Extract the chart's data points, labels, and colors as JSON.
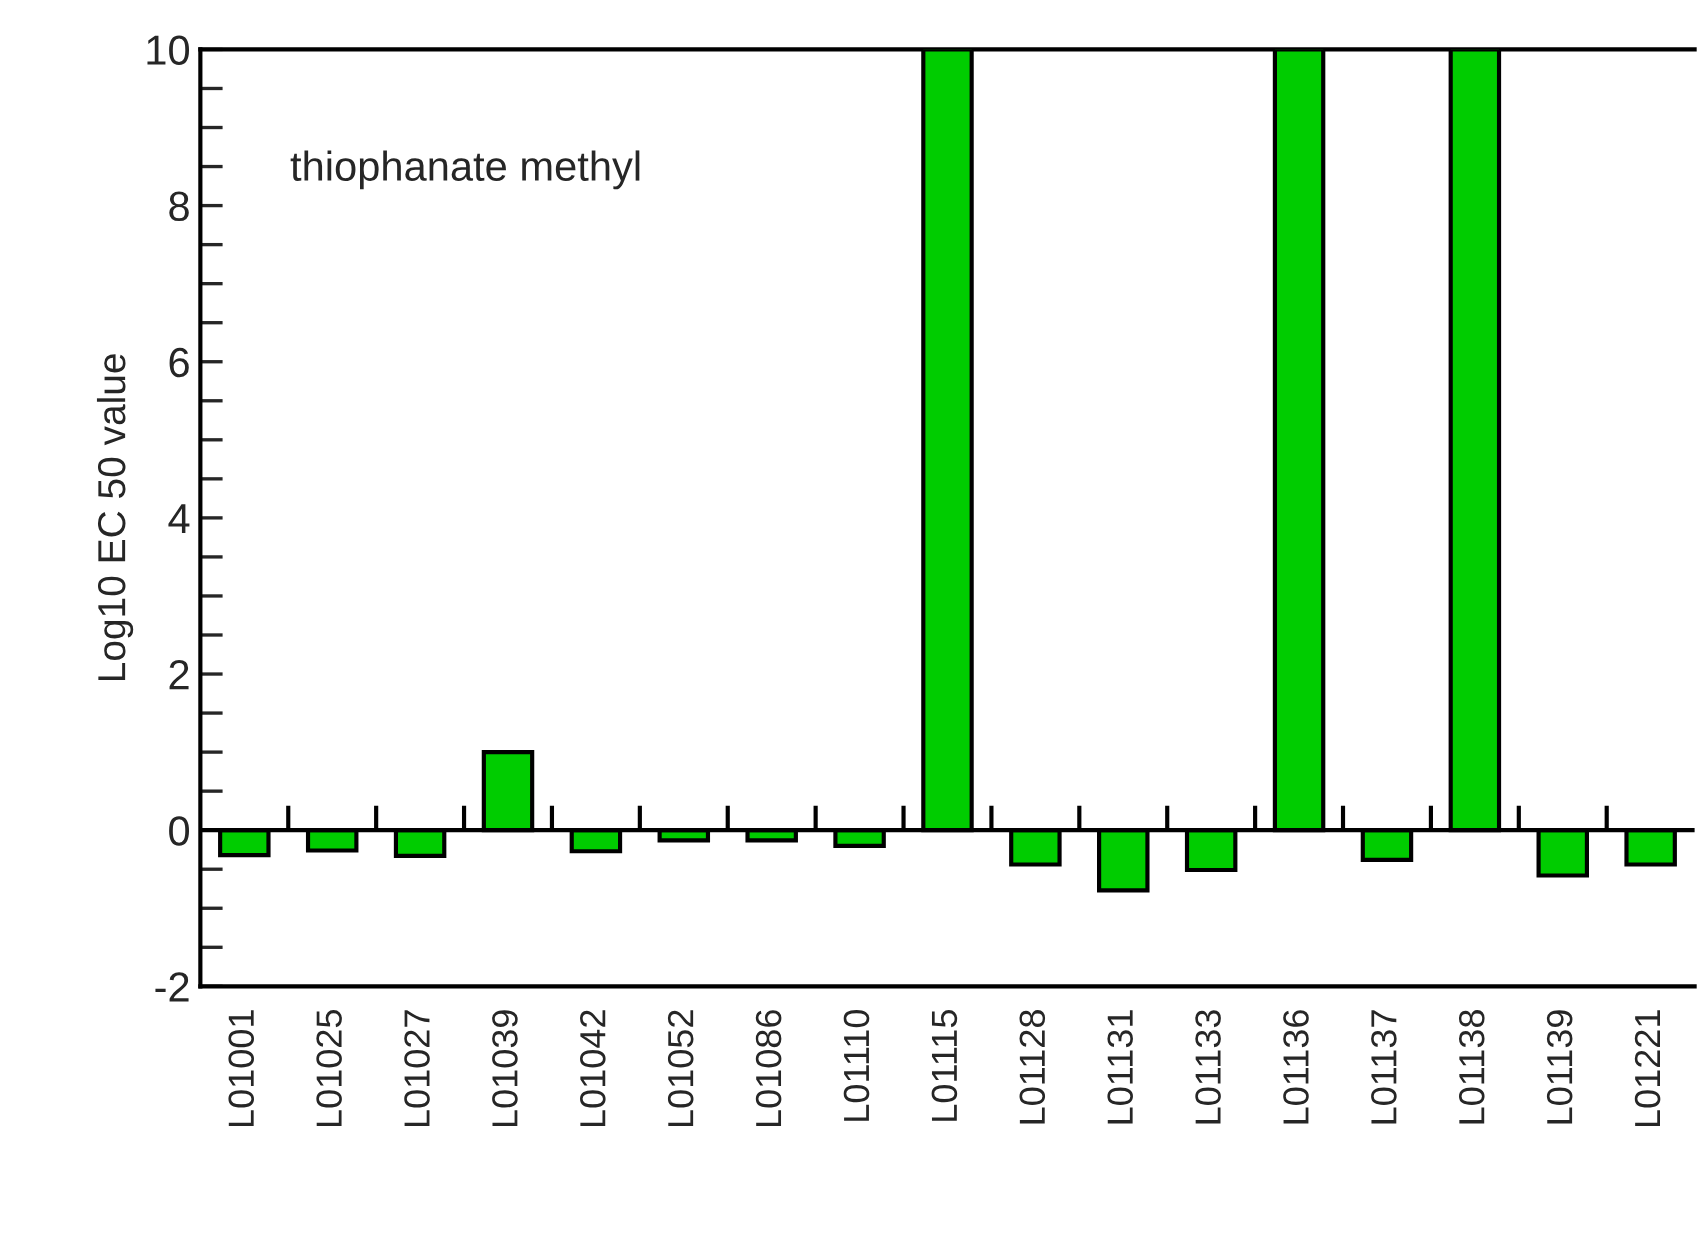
{
  "chart_data": {
    "type": "bar",
    "ylabel": "Log10 EC 50 value",
    "annotations": [
      "thiophanate methyl"
    ],
    "categories": [
      "L01001",
      "L01025",
      "L01027",
      "L01039",
      "L01042",
      "L01052",
      "L01086",
      "L01110",
      "L01115",
      "L01128",
      "L01131",
      "L01133",
      "L01136",
      "L01137",
      "L01138",
      "L01139",
      "L01221"
    ],
    "values": [
      -0.32,
      -0.26,
      -0.33,
      1.0,
      -0.27,
      -0.13,
      -0.13,
      -0.2,
      10,
      -0.44,
      -0.77,
      -0.51,
      10,
      -0.38,
      10,
      -0.58,
      -0.44
    ],
    "color": "#00cc00",
    "ref_lines": [
      {
        "axis": "y",
        "value": 0
      }
    ],
    "ylim": [
      -2,
      10
    ],
    "yticks": [
      -2,
      {
        "value": -1.5,
        "label": null
      },
      {
        "value": -1,
        "label": null
      },
      {
        "value": -0.5,
        "label": null
      },
      0,
      {
        "value": 0.5,
        "label": null
      },
      {
        "value": 1,
        "label": null
      },
      {
        "value": 1.5,
        "label": null
      },
      2,
      {
        "value": 2.5,
        "label": null
      },
      {
        "value": 3,
        "label": null
      },
      {
        "value": 3.5,
        "label": null
      },
      4,
      {
        "value": 4.5,
        "label": null
      },
      {
        "value": 5,
        "label": null
      },
      {
        "value": 5.5,
        "label": null
      },
      6,
      {
        "value": 6.5,
        "label": null
      },
      {
        "value": 7,
        "label": null
      },
      {
        "value": 7.5,
        "label": null
      },
      8,
      {
        "value": 8.5,
        "label": null
      },
      {
        "value": 9,
        "label": null
      },
      {
        "value": 9.5,
        "label": null
      },
      10
    ],
    "grid": false,
    "legend": false
  }
}
